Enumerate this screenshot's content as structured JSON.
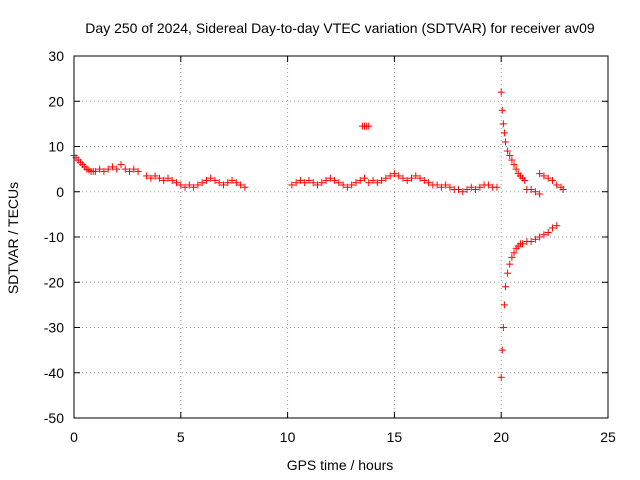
{
  "chart_data": {
    "type": "scatter",
    "title": "Day 250 of 2024, Sidereal Day-to-day VTEC variation (SDTVAR) for receiver av09",
    "xlabel": "GPS time / hours",
    "ylabel": "SDTVAR / TECUs",
    "xlim": [
      0,
      25
    ],
    "ylim": [
      -50,
      30
    ],
    "xticks": [
      "0",
      "5",
      "10",
      "15",
      "20",
      "25"
    ],
    "yticks": [
      "30",
      "20",
      "10",
      "0",
      "-10",
      "-20",
      "-30",
      "-40",
      "-50"
    ],
    "grid": true,
    "marker": "+",
    "marker_color": "#ff0000",
    "series": [
      {
        "name": "SDTVAR",
        "x": [
          0.0,
          0.1,
          0.2,
          0.3,
          0.4,
          0.5,
          0.6,
          0.7,
          0.8,
          0.9,
          1.0,
          1.2,
          1.4,
          1.6,
          1.8,
          2.0,
          2.2,
          2.4,
          2.6,
          2.8,
          3.0,
          3.4,
          3.6,
          3.8,
          4.0,
          4.2,
          4.4,
          4.6,
          4.8,
          5.0,
          5.2,
          5.4,
          5.6,
          5.8,
          6.0,
          6.2,
          6.4,
          6.6,
          6.8,
          7.0,
          7.2,
          7.4,
          7.6,
          7.8,
          8.0,
          10.2,
          10.4,
          10.6,
          10.8,
          11.0,
          11.2,
          11.4,
          11.6,
          11.8,
          12.0,
          12.2,
          12.4,
          12.6,
          12.8,
          13.0,
          13.2,
          13.4,
          13.6,
          13.8,
          14.0,
          13.5,
          13.6,
          13.7,
          13.8,
          14.2,
          14.4,
          14.6,
          14.8,
          15.0,
          15.2,
          15.4,
          15.6,
          15.8,
          16.0,
          16.2,
          16.4,
          16.6,
          16.8,
          17.0,
          17.2,
          17.4,
          17.6,
          17.8,
          18.0,
          18.2,
          18.4,
          18.6,
          18.8,
          19.0,
          19.2,
          19.4,
          19.6,
          19.8,
          20.0,
          20.05,
          20.1,
          20.15,
          20.2,
          20.3,
          20.4,
          20.5,
          20.6,
          20.7,
          20.8,
          20.9,
          21.0,
          21.1,
          20.0,
          20.05,
          20.1,
          20.15,
          20.2,
          20.3,
          20.4,
          20.5,
          20.6,
          20.7,
          20.8,
          20.9,
          21.0,
          21.2,
          21.4,
          21.6,
          21.8,
          22.0,
          22.2,
          22.4,
          22.6,
          21.2,
          21.4,
          21.6,
          21.8,
          21.8,
          22.0,
          22.2,
          22.4,
          22.6,
          22.8,
          22.9
        ],
        "y": [
          8,
          7.5,
          7,
          6.5,
          6,
          5.5,
          5,
          4.8,
          4.5,
          4.5,
          4.5,
          5,
          4.5,
          5,
          5.5,
          5,
          6,
          5,
          4.5,
          5,
          4.5,
          3.5,
          3,
          3.5,
          3,
          2.5,
          3,
          2.5,
          2,
          1.5,
          1,
          1.5,
          1,
          1.5,
          2,
          2.5,
          3,
          2.5,
          2,
          1.5,
          2,
          2.5,
          2,
          1.5,
          1,
          1.5,
          2,
          2.5,
          2,
          2.5,
          2,
          1.5,
          2,
          2.5,
          3,
          2.5,
          2,
          1.5,
          1,
          1.5,
          2,
          2.5,
          3,
          2,
          2.5,
          14.5,
          14.5,
          14.5,
          14.5,
          2,
          2.5,
          3,
          3.5,
          4,
          3.5,
          3,
          2.5,
          3,
          3.5,
          3,
          2.5,
          2,
          1.5,
          1.5,
          1,
          1.5,
          1,
          0.5,
          0.5,
          0,
          0.5,
          1,
          0.5,
          1,
          1.5,
          1.5,
          1,
          1,
          22,
          18,
          15,
          13,
          11,
          9,
          8,
          7,
          6,
          5,
          4,
          3.5,
          3,
          2.5,
          -41,
          -35,
          -30,
          -25,
          -21,
          -18,
          -16,
          -14.5,
          -13.5,
          -12.5,
          -12,
          -11.5,
          -11.5,
          -11,
          -11,
          -10.5,
          -10,
          -9.5,
          -9,
          -8,
          -7.5,
          0.5,
          0.5,
          0,
          -0.5,
          4,
          3.5,
          3,
          2.5,
          1.5,
          1,
          0.5
        ]
      }
    ]
  }
}
